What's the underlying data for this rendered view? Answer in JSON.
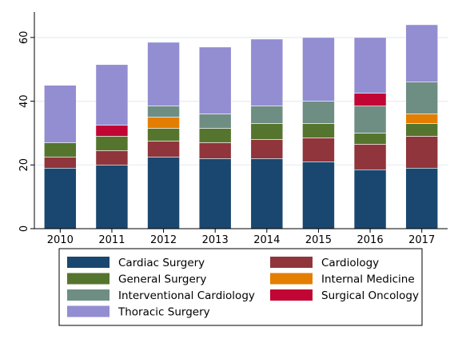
{
  "chart_data": {
    "type": "bar",
    "stacked": true,
    "title": "",
    "xlabel": "",
    "ylabel": "",
    "ylim": [
      0,
      68
    ],
    "yticks": [
      0,
      20,
      40,
      60
    ],
    "grid": true,
    "legend_position": "bottom",
    "categories": [
      "2010",
      "2011",
      "2012",
      "2013",
      "2014",
      "2015",
      "2016",
      "2017"
    ],
    "series": [
      {
        "name": "Cardiac Surgery",
        "color": "#1a476f",
        "values": [
          19,
          20,
          22.5,
          22,
          22,
          21,
          18.5,
          19
        ]
      },
      {
        "name": "Cardiology",
        "color": "#90353b",
        "values": [
          3.5,
          4.5,
          5,
          5,
          6,
          7.5,
          8,
          10
        ]
      },
      {
        "name": "General Surgery",
        "color": "#55752f",
        "values": [
          4.5,
          4.5,
          4,
          4.5,
          5,
          4.5,
          3.5,
          4
        ]
      },
      {
        "name": "Internal Medicine",
        "color": "#e37e00",
        "values": [
          0,
          0,
          3.5,
          0,
          0,
          0,
          0,
          3
        ]
      },
      {
        "name": "Interventional Cardiology",
        "color": "#6e8e84",
        "values": [
          0,
          0,
          3.5,
          4.5,
          5.5,
          7,
          8.5,
          10
        ]
      },
      {
        "name": "Surgical Oncology",
        "color": "#c10534",
        "values": [
          0,
          3.5,
          0,
          0,
          0,
          0,
          4,
          0
        ]
      },
      {
        "name": "Thoracic Surgery",
        "color": "#938dd2",
        "values": [
          18,
          19,
          20,
          21,
          21,
          20,
          17.5,
          18
        ]
      }
    ]
  }
}
